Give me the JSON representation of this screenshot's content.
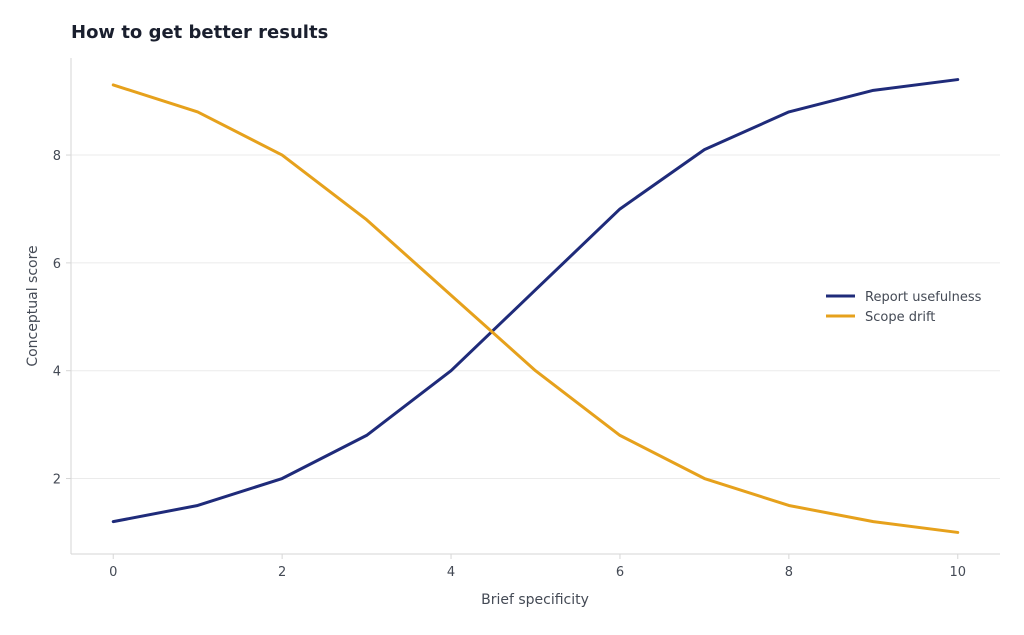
{
  "colors": {
    "background": "#ffffff",
    "grid": "#ebebeb",
    "axis": "#d6d6d6",
    "text": "#444a55",
    "title": "#1a1f2e"
  },
  "chart_data": {
    "type": "line",
    "title": "How to get better results",
    "xlabel": "Brief specificity",
    "ylabel": "Conceptual score",
    "xlim": [
      -0.5,
      10.5
    ],
    "ylim": [
      0.6,
      9.8
    ],
    "xticks": [
      0,
      2,
      4,
      6,
      8,
      10
    ],
    "yticks": [
      2,
      4,
      6,
      8
    ],
    "grid": "horizontal",
    "legend_position": "right",
    "x": [
      0,
      1,
      2,
      3,
      4,
      5,
      6,
      7,
      8,
      9,
      10
    ],
    "series": [
      {
        "name": "Report usefulness",
        "color": "#1f2b7a",
        "values": [
          1.2,
          1.5,
          2.0,
          2.8,
          4.0,
          5.5,
          7.0,
          8.1,
          8.8,
          9.2,
          9.4
        ]
      },
      {
        "name": "Scope drift",
        "color": "#e6a11c",
        "values": [
          9.3,
          8.8,
          8.0,
          6.8,
          5.4,
          4.0,
          2.8,
          2.0,
          1.5,
          1.2,
          1.0
        ]
      }
    ]
  }
}
